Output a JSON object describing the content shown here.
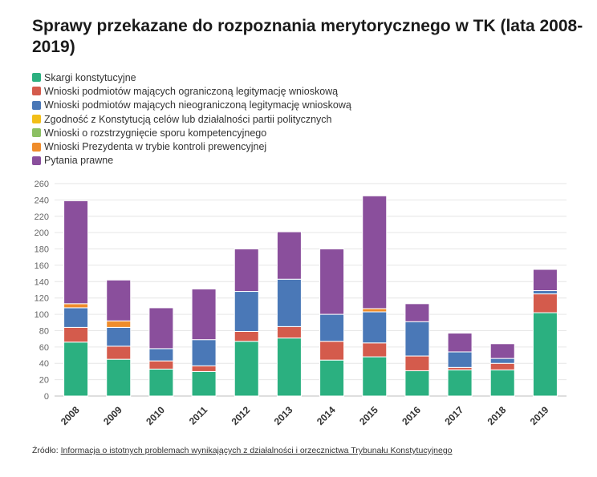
{
  "title": "Sprawy przekazane do rozpoznania merytorycznego w TK (lata 2008-2019)",
  "source": {
    "prefix": "Źródło: ",
    "link_text": "Informacja o istotnych problemach wynikających z działalności i orzecznictwa Trybunału Konstytucyjnego"
  },
  "chart_data": {
    "type": "bar",
    "stacked": true,
    "categories": [
      "2008",
      "2009",
      "2010",
      "2011",
      "2012",
      "2013",
      "2014",
      "2015",
      "2016",
      "2017",
      "2018",
      "2019"
    ],
    "ylim": [
      0,
      260
    ],
    "yticks": [
      0,
      20,
      40,
      60,
      80,
      100,
      120,
      140,
      160,
      180,
      200,
      220,
      240,
      260
    ],
    "grid": true,
    "legend_position": "top-left",
    "series": [
      {
        "name": "Skargi konstytucyjne",
        "color": "#2bb080",
        "values": [
          66,
          45,
          33,
          30,
          67,
          71,
          44,
          48,
          31,
          32,
          32,
          102
        ]
      },
      {
        "name": "Wnioski podmiotów mających ograniczoną legitymację wnioskową",
        "color": "#d45b4c",
        "values": [
          18,
          16,
          10,
          7,
          12,
          14,
          23,
          17,
          18,
          3,
          8,
          23
        ]
      },
      {
        "name": "Wnioski podmiotów mających nieograniczoną legitymację wnioskową",
        "color": "#4a78b7",
        "values": [
          24,
          23,
          15,
          32,
          49,
          58,
          33,
          38,
          42,
          19,
          6,
          4
        ]
      },
      {
        "name": "Zgodność z Konstytucją celów lub działalności partii politycznych",
        "color": "#f2be18",
        "values": [
          0,
          0,
          0,
          0,
          0,
          0,
          0,
          0,
          0,
          0,
          0,
          0
        ]
      },
      {
        "name": "Wnioski o rozstrzygnięcie sporu kompetencyjnego",
        "color": "#8cc063",
        "values": [
          0,
          0,
          0,
          0,
          0,
          0,
          0,
          0,
          0,
          0,
          0,
          0
        ]
      },
      {
        "name": "Wnioski Prezydenta w trybie kontroli prewencyjnej",
        "color": "#ef8c2b",
        "values": [
          5,
          8,
          0,
          0,
          0,
          0,
          0,
          4,
          0,
          0,
          0,
          0
        ]
      },
      {
        "name": "Pytania prawne",
        "color": "#8a4f9c",
        "values": [
          126,
          50,
          50,
          62,
          52,
          58,
          80,
          138,
          22,
          23,
          18,
          26
        ]
      }
    ]
  }
}
